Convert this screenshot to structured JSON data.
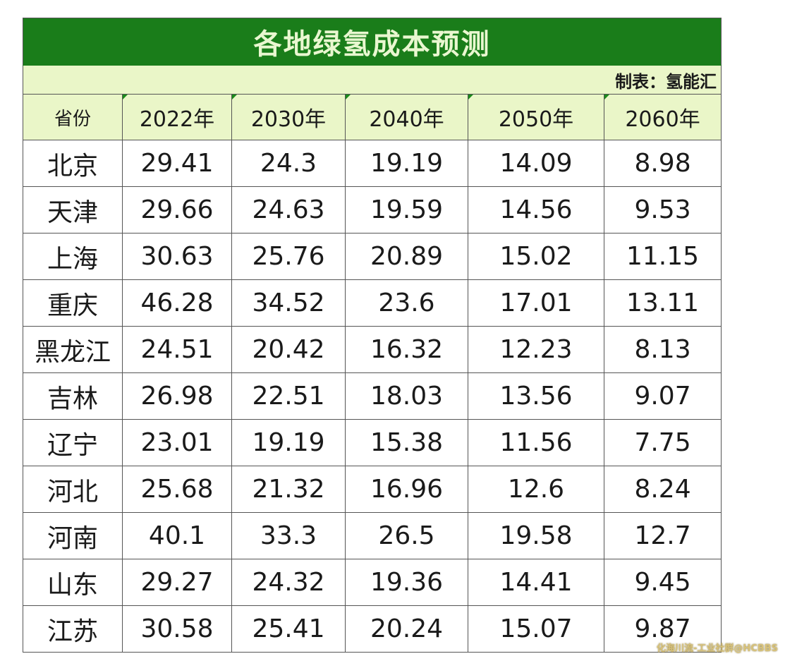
{
  "title": "各地绿氢成本预测",
  "credit": "制表：氢能汇",
  "headers": [
    "省份",
    "2022年",
    "2030年",
    "2040年",
    "2050年",
    "2060年"
  ],
  "rows": [
    [
      "北京",
      "29.41",
      "24.3",
      "19.19",
      "14.09",
      "8.98"
    ],
    [
      "天津",
      "29.66",
      "24.63",
      "19.59",
      "14.56",
      "9.53"
    ],
    [
      "上海",
      "30.63",
      "25.76",
      "20.89",
      "15.02",
      "11.15"
    ],
    [
      "重庆",
      "46.28",
      "34.52",
      "23.6",
      "17.01",
      "13.11"
    ],
    [
      "黑龙江",
      "24.51",
      "20.42",
      "16.32",
      "12.23",
      "8.13"
    ],
    [
      "吉林",
      "26.98",
      "22.51",
      "18.03",
      "13.56",
      "9.07"
    ],
    [
      "辽宁",
      "23.01",
      "19.19",
      "15.38",
      "11.56",
      "7.75"
    ],
    [
      "河北",
      "25.68",
      "21.32",
      "16.96",
      "12.6",
      "8.24"
    ],
    [
      "河南",
      "40.1",
      "33.3",
      "26.5",
      "19.58",
      "12.7"
    ],
    [
      "山东",
      "29.27",
      "24.32",
      "19.36",
      "14.41",
      "9.45"
    ],
    [
      "江苏",
      "30.58",
      "25.41",
      "20.24",
      "15.07",
      "9.87"
    ]
  ],
  "watermark": "化海川流-工业社群@HCBBS",
  "colors": {
    "title_bg": "#1a7d1a",
    "header_bg": "#eaf6c8"
  }
}
